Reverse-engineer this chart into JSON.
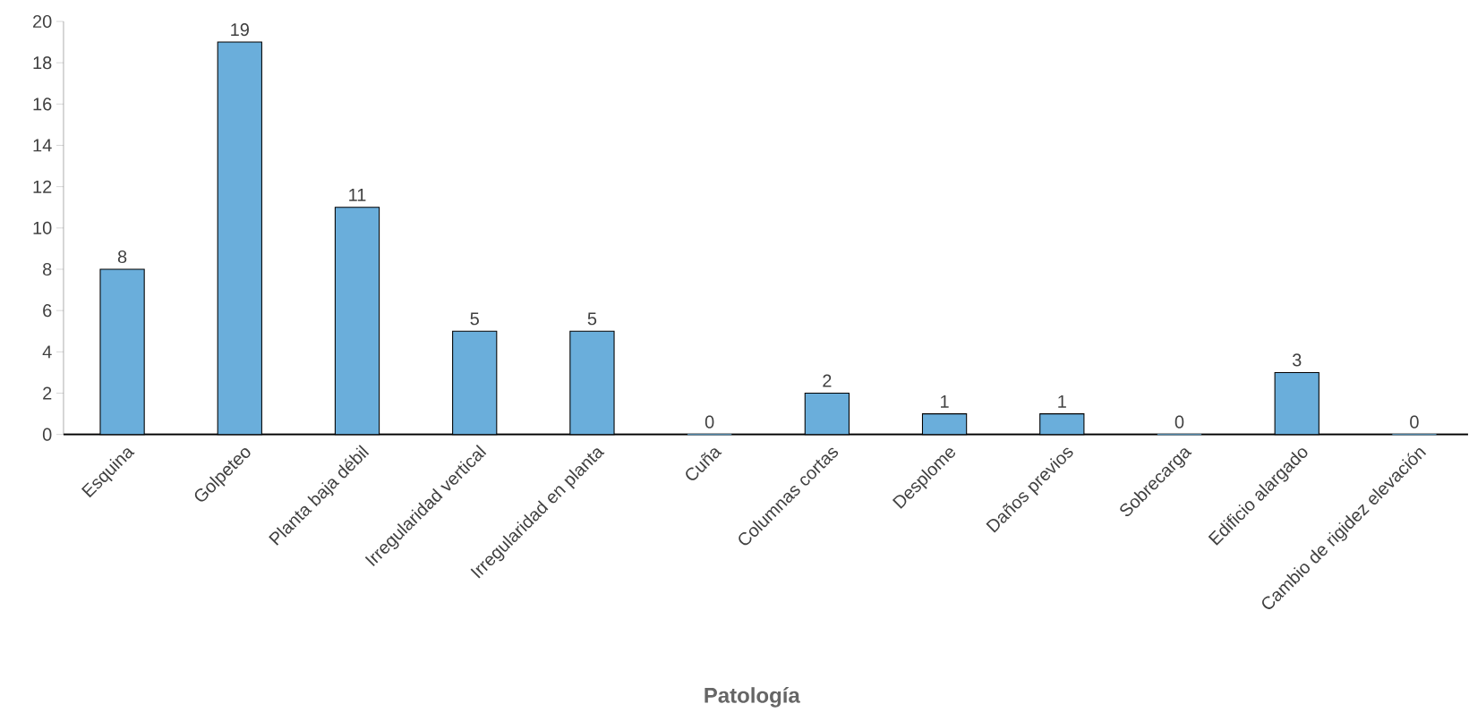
{
  "chart_data": {
    "type": "bar",
    "xlabel": "Patología",
    "categories": [
      "Esquina",
      "Golpeteo",
      "Planta baja débil",
      "Irregularidad vertical",
      "Irregularidad en planta",
      "Cuña",
      "Columnas cortas",
      "Desplome",
      "Daños previos",
      "Sobrecarga",
      "Edificio alargado",
      "Cambio de rigidez elevación"
    ],
    "values": [
      8,
      19,
      11,
      5,
      5,
      0,
      2,
      1,
      1,
      0,
      3,
      0
    ],
    "color": "#6aaedb",
    "ylim": [
      0,
      20
    ],
    "yticks": [
      0,
      2,
      4,
      6,
      8,
      10,
      12,
      14,
      16,
      18,
      20
    ],
    "data_labels": true,
    "grid": false
  }
}
